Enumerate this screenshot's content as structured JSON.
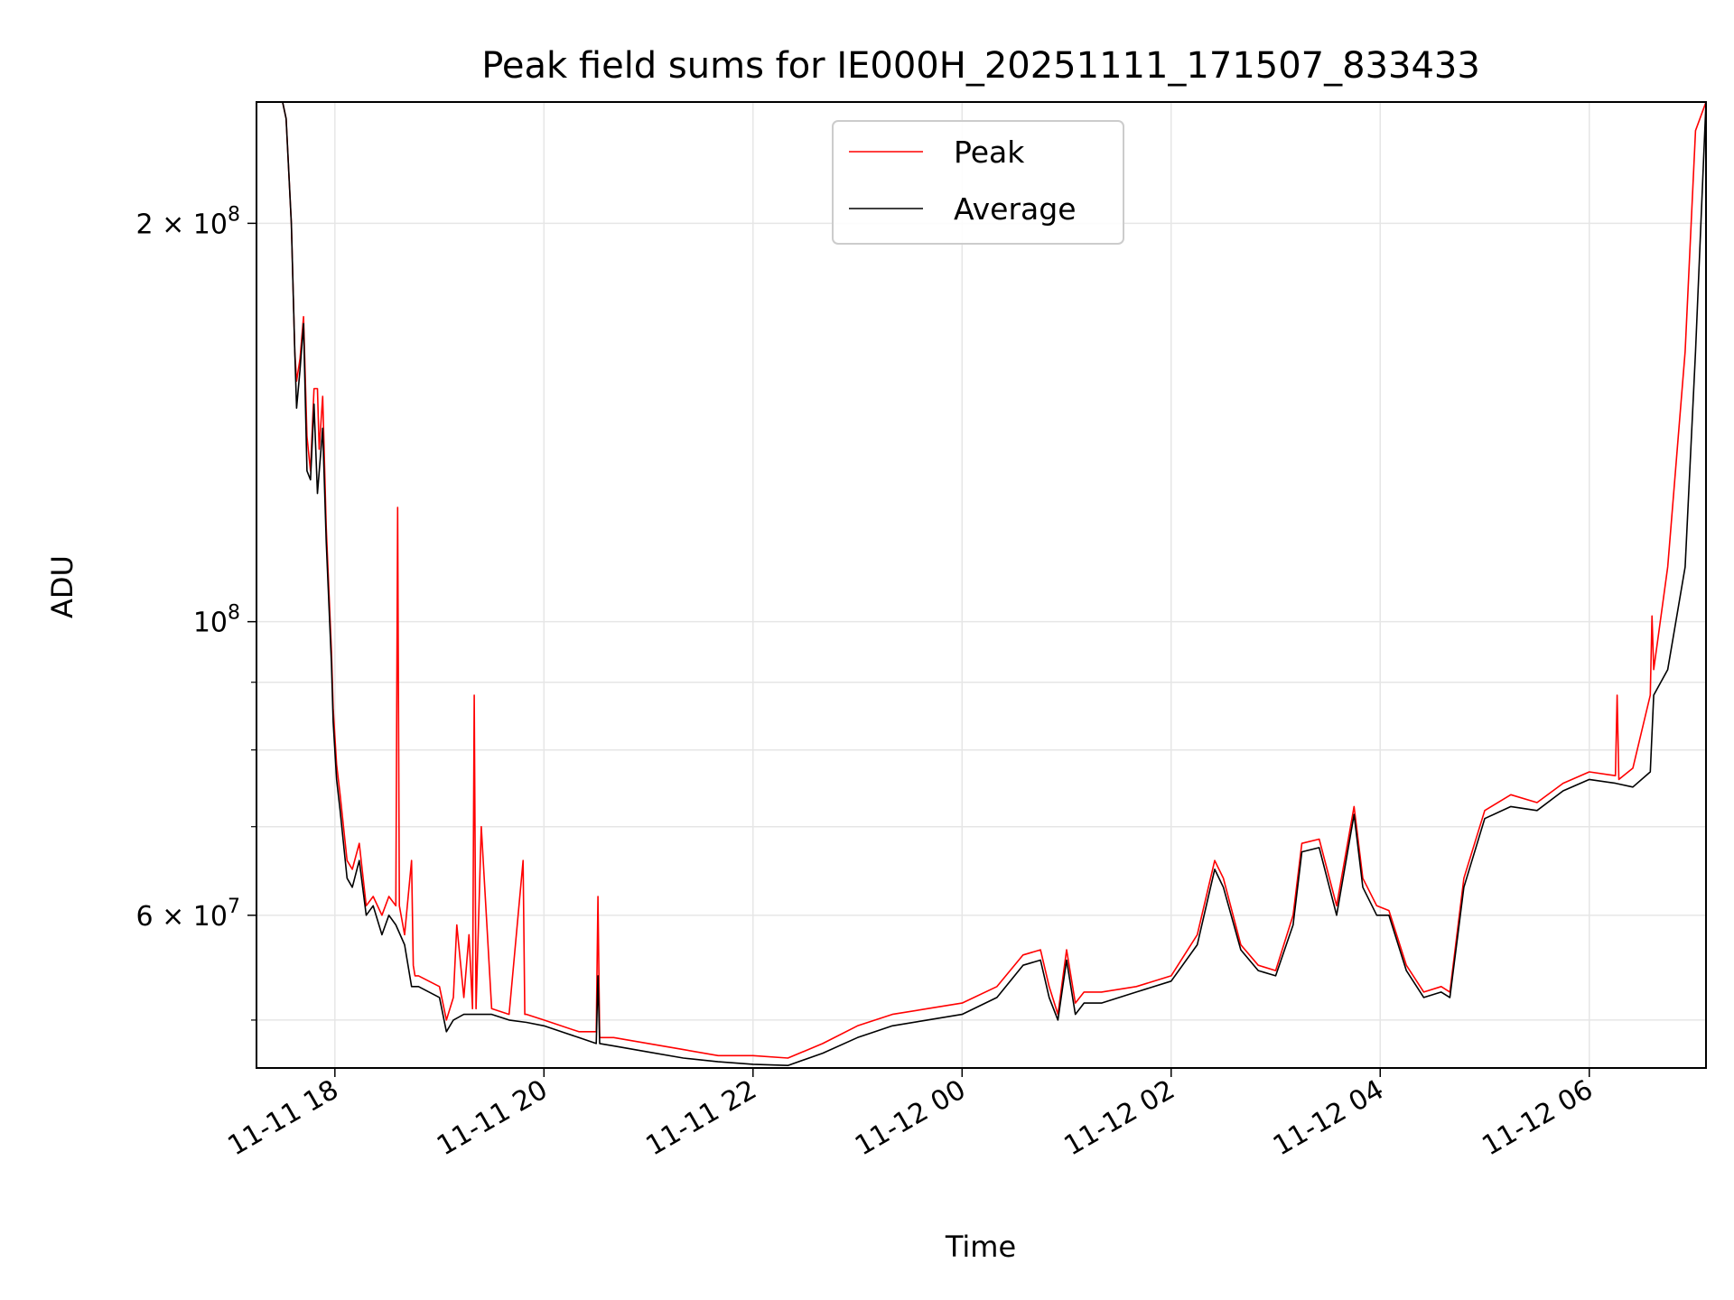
{
  "chart_data": {
    "type": "line",
    "title": "Peak field sums for IE000H_20251111_171507_833433",
    "xlabel": "Time",
    "ylabel": "ADU",
    "yscale": "log",
    "ylim": [
      46000000,
      247000000
    ],
    "xlim": [
      "2025-11-11 17:15",
      "2025-11-12 07:07"
    ],
    "grid": true,
    "legend_position": "upper center",
    "x_ticks": [
      {
        "label": "11-11 18",
        "value": "2025-11-11 18:00"
      },
      {
        "label": "11-11 20",
        "value": "2025-11-11 20:00"
      },
      {
        "label": "11-11 22",
        "value": "2025-11-11 22:00"
      },
      {
        "label": "11-12 00",
        "value": "2025-11-12 00:00"
      },
      {
        "label": "11-12 02",
        "value": "2025-11-12 02:00"
      },
      {
        "label": "11-12 04",
        "value": "2025-11-12 04:00"
      },
      {
        "label": "11-12 06",
        "value": "2025-11-12 06:00"
      }
    ],
    "y_major_ticks": [
      {
        "label_base": "2 × 10",
        "label_exp": "8",
        "value": 200000000
      },
      {
        "label_base": "10",
        "label_exp": "8",
        "value": 100000000
      },
      {
        "label_base": "6 × 10",
        "label_exp": "7",
        "value": 60000000
      }
    ],
    "y_minor_ticks": [
      50000000,
      70000000,
      80000000,
      90000000
    ],
    "series": [
      {
        "name": "Peak",
        "color": "#ff0000",
        "x": [
          "2025-11-11 17:15",
          "2025-11-11 17:30",
          "2025-11-11 17:32",
          "2025-11-11 17:35",
          "2025-11-11 17:37",
          "2025-11-11 17:38",
          "2025-11-11 17:40",
          "2025-11-11 17:42",
          "2025-11-11 17:44",
          "2025-11-11 17:46",
          "2025-11-11 17:48",
          "2025-11-11 17:50",
          "2025-11-11 17:51",
          "2025-11-11 17:53",
          "2025-11-11 17:55",
          "2025-11-11 17:58",
          "2025-11-11 17:59",
          "2025-11-11 18:01",
          "2025-11-11 18:03",
          "2025-11-11 18:07",
          "2025-11-11 18:10",
          "2025-11-11 18:14",
          "2025-11-11 18:18",
          "2025-11-11 18:22",
          "2025-11-11 18:27",
          "2025-11-11 18:31",
          "2025-11-11 18:35",
          "2025-11-11 18:36",
          "2025-11-11 18:37",
          "2025-11-11 18:40",
          "2025-11-11 18:44",
          "2025-11-11 18:45",
          "2025-11-11 18:46",
          "2025-11-11 18:48",
          "2025-11-11 19:00",
          "2025-11-11 19:04",
          "2025-11-11 19:08",
          "2025-11-11 19:10",
          "2025-11-11 19:14",
          "2025-11-11 19:17",
          "2025-11-11 19:19",
          "2025-11-11 19:20",
          "2025-11-11 19:21",
          "2025-11-11 19:24",
          "2025-11-11 19:30",
          "2025-11-11 19:40",
          "2025-11-11 19:48",
          "2025-11-11 19:49",
          "2025-11-11 19:50",
          "2025-11-11 20:00",
          "2025-11-11 20:20",
          "2025-11-11 20:30",
          "2025-11-11 20:31",
          "2025-11-11 20:32",
          "2025-11-11 20:40",
          "2025-11-11 21:00",
          "2025-11-11 21:20",
          "2025-11-11 21:40",
          "2025-11-11 22:00",
          "2025-11-11 22:20",
          "2025-11-11 22:40",
          "2025-11-11 23:00",
          "2025-11-11 23:20",
          "2025-11-11 23:40",
          "2025-11-12 00:00",
          "2025-11-12 00:20",
          "2025-11-12 00:35",
          "2025-11-12 00:45",
          "2025-11-12 00:50",
          "2025-11-12 00:55",
          "2025-11-12 01:00",
          "2025-11-12 01:05",
          "2025-11-12 01:10",
          "2025-11-12 01:20",
          "2025-11-12 01:40",
          "2025-11-12 02:00",
          "2025-11-12 02:15",
          "2025-11-12 02:25",
          "2025-11-12 02:30",
          "2025-11-12 02:40",
          "2025-11-12 02:50",
          "2025-11-12 03:00",
          "2025-11-12 03:10",
          "2025-11-12 03:15",
          "2025-11-12 03:25",
          "2025-11-12 03:35",
          "2025-11-12 03:45",
          "2025-11-12 03:50",
          "2025-11-12 03:58",
          "2025-11-12 04:05",
          "2025-11-12 04:15",
          "2025-11-12 04:25",
          "2025-11-12 04:35",
          "2025-11-12 04:40",
          "2025-11-12 04:48",
          "2025-11-12 05:00",
          "2025-11-12 05:15",
          "2025-11-12 05:30",
          "2025-11-12 05:45",
          "2025-11-12 06:00",
          "2025-11-12 06:15",
          "2025-11-12 06:16",
          "2025-11-12 06:17",
          "2025-11-12 06:25",
          "2025-11-12 06:35",
          "2025-11-12 06:36",
          "2025-11-12 06:37",
          "2025-11-12 06:45",
          "2025-11-12 06:55",
          "2025-11-12 07:01",
          "2025-11-12 07:07"
        ],
        "values": [
          247000000,
          247000000,
          240000000,
          200000000,
          160000000,
          152000000,
          158000000,
          170000000,
          138000000,
          130000000,
          150000000,
          150000000,
          135000000,
          148000000,
          118000000,
          95000000,
          86000000,
          78000000,
          74000000,
          66000000,
          65000000,
          68000000,
          61000000,
          62000000,
          60000000,
          62000000,
          61000000,
          122000000,
          61000000,
          58000000,
          66000000,
          55000000,
          54000000,
          54000000,
          53000000,
          50000000,
          52000000,
          59000000,
          52000000,
          58000000,
          51000000,
          88000000,
          51000000,
          70000000,
          51000000,
          50500000,
          66000000,
          50500000,
          50500000,
          50000000,
          49000000,
          49000000,
          62000000,
          48500000,
          48500000,
          48000000,
          47500000,
          47000000,
          47000000,
          46800000,
          48000000,
          49500000,
          50500000,
          51000000,
          51500000,
          53000000,
          56000000,
          56500000,
          53000000,
          50500000,
          56500000,
          51500000,
          52500000,
          52500000,
          53000000,
          54000000,
          58000000,
          66000000,
          64000000,
          57000000,
          55000000,
          54500000,
          60000000,
          68000000,
          68500000,
          61000000,
          72500000,
          64000000,
          61000000,
          60500000,
          55000000,
          52500000,
          53000000,
          52500000,
          64000000,
          72000000,
          74000000,
          73000000,
          75500000,
          77000000,
          76500000,
          88000000,
          76000000,
          77500000,
          88000000,
          101000000,
          92000000,
          110000000,
          160000000,
          235000000,
          247000000
        ]
      },
      {
        "name": "Average",
        "color": "#000000",
        "x": [
          "2025-11-11 17:15",
          "2025-11-11 17:30",
          "2025-11-11 17:32",
          "2025-11-11 17:35",
          "2025-11-11 17:37",
          "2025-11-11 17:38",
          "2025-11-11 17:40",
          "2025-11-11 17:42",
          "2025-11-11 17:44",
          "2025-11-11 17:46",
          "2025-11-11 17:48",
          "2025-11-11 17:50",
          "2025-11-11 17:53",
          "2025-11-11 17:55",
          "2025-11-11 17:58",
          "2025-11-11 17:59",
          "2025-11-11 18:01",
          "2025-11-11 18:03",
          "2025-11-11 18:07",
          "2025-11-11 18:10",
          "2025-11-11 18:14",
          "2025-11-11 18:18",
          "2025-11-11 18:22",
          "2025-11-11 18:27",
          "2025-11-11 18:31",
          "2025-11-11 18:35",
          "2025-11-11 18:40",
          "2025-11-11 18:44",
          "2025-11-11 18:48",
          "2025-11-11 19:00",
          "2025-11-11 19:04",
          "2025-11-11 19:08",
          "2025-11-11 19:14",
          "2025-11-11 19:20",
          "2025-11-11 19:30",
          "2025-11-11 19:40",
          "2025-11-11 19:50",
          "2025-11-11 20:00",
          "2025-11-11 20:20",
          "2025-11-11 20:30",
          "2025-11-11 20:31",
          "2025-11-11 20:32",
          "2025-11-11 20:40",
          "2025-11-11 21:00",
          "2025-11-11 21:20",
          "2025-11-11 21:40",
          "2025-11-11 22:00",
          "2025-11-11 22:20",
          "2025-11-11 22:40",
          "2025-11-11 23:00",
          "2025-11-11 23:20",
          "2025-11-11 23:40",
          "2025-11-12 00:00",
          "2025-11-12 00:20",
          "2025-11-12 00:35",
          "2025-11-12 00:45",
          "2025-11-12 00:50",
          "2025-11-12 00:55",
          "2025-11-12 01:00",
          "2025-11-12 01:05",
          "2025-11-12 01:10",
          "2025-11-12 01:20",
          "2025-11-12 01:40",
          "2025-11-12 02:00",
          "2025-11-12 02:15",
          "2025-11-12 02:25",
          "2025-11-12 02:30",
          "2025-11-12 02:40",
          "2025-11-12 02:50",
          "2025-11-12 03:00",
          "2025-11-12 03:10",
          "2025-11-12 03:15",
          "2025-11-12 03:25",
          "2025-11-12 03:35",
          "2025-11-12 03:45",
          "2025-11-12 03:50",
          "2025-11-12 03:58",
          "2025-11-12 04:05",
          "2025-11-12 04:15",
          "2025-11-12 04:25",
          "2025-11-12 04:35",
          "2025-11-12 04:40",
          "2025-11-12 04:48",
          "2025-11-12 05:00",
          "2025-11-12 05:15",
          "2025-11-12 05:30",
          "2025-11-12 05:45",
          "2025-11-12 06:00",
          "2025-11-12 06:15",
          "2025-11-12 06:25",
          "2025-11-12 06:35",
          "2025-11-12 06:37",
          "2025-11-12 06:45",
          "2025-11-12 06:55",
          "2025-11-12 07:01",
          "2025-11-12 07:07"
        ],
        "values": [
          247000000,
          247000000,
          240000000,
          200000000,
          160000000,
          145000000,
          155000000,
          168000000,
          130000000,
          128000000,
          146000000,
          125000000,
          140000000,
          115000000,
          93000000,
          84000000,
          76000000,
          72000000,
          64000000,
          63000000,
          66000000,
          60000000,
          61000000,
          58000000,
          60000000,
          59000000,
          57000000,
          53000000,
          53000000,
          52000000,
          49000000,
          50000000,
          50500000,
          50500000,
          50500000,
          50000000,
          49800000,
          49500000,
          48500000,
          48000000,
          54000000,
          48000000,
          47800000,
          47300000,
          46800000,
          46500000,
          46300000,
          46200000,
          47200000,
          48500000,
          49500000,
          50000000,
          50500000,
          52000000,
          55000000,
          55500000,
          52000000,
          50000000,
          55500000,
          50500000,
          51500000,
          51500000,
          52500000,
          53500000,
          57000000,
          65000000,
          63000000,
          56500000,
          54500000,
          54000000,
          59000000,
          67000000,
          67500000,
          60000000,
          71500000,
          63000000,
          60000000,
          60000000,
          54500000,
          52000000,
          52500000,
          52000000,
          63000000,
          71000000,
          72500000,
          72000000,
          74500000,
          76000000,
          75500000,
          75000000,
          77000000,
          88000000,
          92000000,
          110000000,
          160000000,
          247000000
        ]
      }
    ]
  }
}
